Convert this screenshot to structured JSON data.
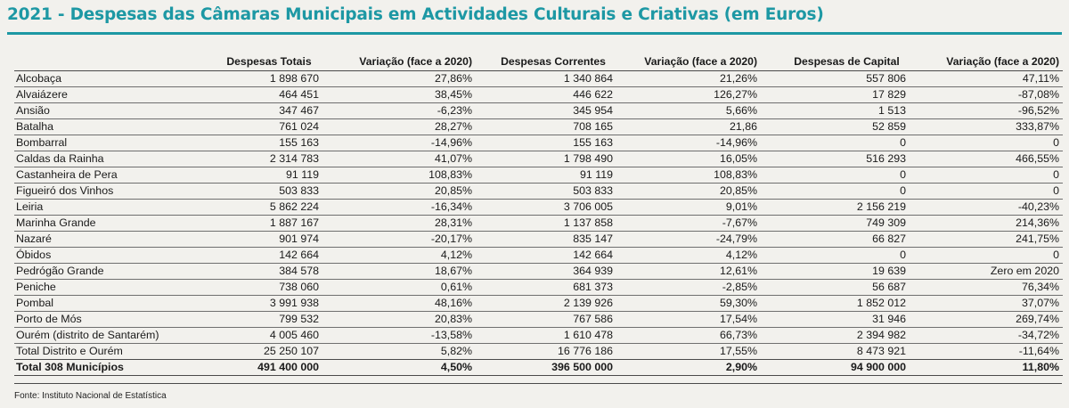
{
  "title": "2021 - Despesas das Câmaras Municipais em Actividades Culturais e Criativas (em Euros)",
  "headers": [
    "",
    "Despesas Totais",
    "Variação (face a 2020)",
    "Despesas Correntes",
    "Variação (face a 2020)",
    "Despesas de Capital",
    "Variação (face a 2020)"
  ],
  "rows": [
    [
      "Alcobaça",
      "1 898 670",
      "27,86%",
      "1 340 864",
      "21,26%",
      "557 806",
      "47,11%"
    ],
    [
      "Alvaiázere",
      "464 451",
      "38,45%",
      "446 622",
      "126,27%",
      "17 829",
      "-87,08%"
    ],
    [
      "Ansião",
      "347 467",
      "-6,23%",
      "345 954",
      "5,66%",
      "1 513",
      "-96,52%"
    ],
    [
      "Batalha",
      "761 024",
      "28,27%",
      "708 165",
      "21,86",
      "52 859",
      "333,87%"
    ],
    [
      "Bombarral",
      "155 163",
      "-14,96%",
      "155 163",
      "-14,96%",
      "0",
      "0"
    ],
    [
      "Caldas da Rainha",
      "2 314 783",
      "41,07%",
      "1 798 490",
      "16,05%",
      "516 293",
      "466,55%"
    ],
    [
      "Castanheira de Pera",
      "91 119",
      "108,83%",
      "91 119",
      "108,83%",
      "0",
      "0"
    ],
    [
      "Figueiró dos Vinhos",
      "503 833",
      "20,85%",
      "503 833",
      "20,85%",
      "0",
      "0"
    ],
    [
      "Leiria",
      "5 862 224",
      "-16,34%",
      "3 706 005",
      "9,01%",
      "2 156 219",
      "-40,23%"
    ],
    [
      "Marinha Grande",
      "1 887 167",
      "28,31%",
      "1 137 858",
      "-7,67%",
      "749 309",
      "214,36%"
    ],
    [
      "Nazaré",
      "901 974",
      "-20,17%",
      "835 147",
      "-24,79%",
      "66 827",
      "241,75%"
    ],
    [
      "Óbidos",
      "142 664",
      "4,12%",
      "142 664",
      "4,12%",
      "0",
      "0"
    ],
    [
      "Pedrógão Grande",
      "384 578",
      "18,67%",
      "364 939",
      "12,61%",
      "19 639",
      "Zero em 2020"
    ],
    [
      "Peniche",
      "738 060",
      "0,61%",
      "681 373",
      "-2,85%",
      "56 687",
      "76,34%"
    ],
    [
      "Pombal",
      "3 991 938",
      "48,16%",
      "2 139 926",
      "59,30%",
      "1 852 012",
      "37,07%"
    ],
    [
      "Porto de Mós",
      "799 532",
      "20,83%",
      "767 586",
      "17,54%",
      "31 946",
      "269,74%"
    ],
    [
      "Ourém (distrito de Santarém)",
      "4 005 460",
      "-13,58%",
      "1 610 478",
      "66,73%",
      "2 394 982",
      "-34,72%"
    ],
    [
      "Total Distrito e Ourém",
      "25 250 107",
      "5,82%",
      "16 776 186",
      "17,55%",
      "8 473 921",
      "-11,64%"
    ]
  ],
  "total_row": [
    "Total 308 Municípios",
    "491 400 000",
    "4,50%",
    "396 500 000",
    "2,90%",
    "94 900 000",
    "11,80%"
  ],
  "source": "Fonte: Instituto Nacional de Estatística",
  "colors": {
    "accent": "#1d98a4",
    "background": "#f2f1ed",
    "text": "#1a1a1a"
  }
}
